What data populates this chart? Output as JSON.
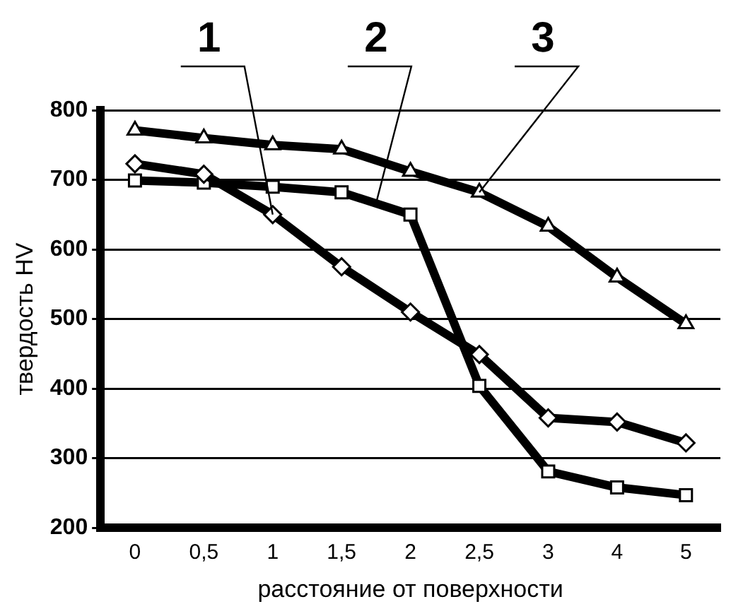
{
  "chart_data": {
    "type": "line",
    "xlabel": "расстояние от поверхности",
    "ylabel": "твердость HV",
    "categories": [
      "0",
      "0,5",
      "1",
      "1,5",
      "2",
      "2,5",
      "3",
      "4",
      "5"
    ],
    "series": [
      {
        "name": "1",
        "color": "#000000",
        "marker": "diamond",
        "values": [
          723,
          708,
          650,
          575,
          510,
          449,
          358,
          352,
          322
        ]
      },
      {
        "name": "2",
        "color": "#000000",
        "marker": "square",
        "values": [
          699,
          696,
          690,
          682,
          650,
          404,
          281,
          258,
          247
        ]
      },
      {
        "name": "3",
        "color": "#000000",
        "marker": "triangle",
        "values": [
          771,
          760,
          750,
          744,
          712,
          682,
          633,
          560,
          493
        ]
      }
    ],
    "ylim": [
      200,
      800
    ],
    "yticks": [
      200,
      300,
      400,
      500,
      600,
      700,
      800
    ],
    "grid": "y",
    "legend": false,
    "line_style": "solid"
  }
}
